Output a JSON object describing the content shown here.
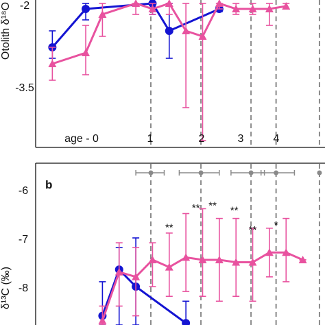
{
  "panel_a": {
    "ylabel": "Otolith δ¹⁸O",
    "yticks": [
      "-2",
      "-3.5"
    ],
    "age_labels": [
      "age - 0",
      "1",
      "2",
      "3",
      "4"
    ]
  },
  "panel_b": {
    "letter": "b",
    "ylabel": "δ¹³C (‰)",
    "yticks": [
      "-6",
      "-7",
      "-8"
    ],
    "significance": [
      "**",
      "**",
      "**",
      "**",
      "**",
      "*"
    ]
  },
  "colors": {
    "blue": "#1414d2",
    "pink": "#e8529f",
    "dash": "#8a8a8a"
  },
  "chart_data": [
    {
      "type": "line",
      "panel": "a",
      "ylabel": "Otolith δ¹⁸O",
      "ylim": [
        -4.5,
        -1.9
      ],
      "yticks": [
        -2,
        -3.5
      ],
      "x_range": [
        0,
        17
      ],
      "series": [
        {
          "color": "#1414d2",
          "marker": "circle",
          "x": [
            1,
            3,
            7,
            8,
            11
          ],
          "y": [
            -2.7,
            -2.0,
            -1.9,
            -2.4,
            -2.0
          ],
          "err_low": [
            -2.9,
            -2.2,
            -2.1,
            -2.9,
            -2.05
          ],
          "err_high": [
            -2.4,
            -1.9,
            -1.9,
            -1.9,
            -1.95
          ]
        },
        {
          "color": "#e8529f",
          "marker": "triangle",
          "x": [
            1,
            3,
            4,
            6,
            7,
            8,
            9,
            10,
            11,
            12,
            13,
            14,
            15
          ],
          "y": [
            -3.0,
            -2.8,
            -2.1,
            -1.9,
            -2.0,
            -1.9,
            -2.4,
            -2.5,
            -1.9,
            -2.0,
            -2.0,
            -2.0,
            -1.95
          ],
          "err_low": [
            -3.3,
            -3.2,
            -2.5,
            -2.1,
            -2.1,
            -2.1,
            -3.8,
            -4.4,
            -2.0,
            -2.1,
            -2.1,
            -2.3,
            -2.0
          ],
          "err_high": [
            -2.7,
            -2.3,
            -1.9,
            -1.9,
            -1.9,
            -1.9,
            -1.9,
            -1.9,
            -1.9,
            -1.9,
            -1.9,
            -1.9,
            -1.9
          ]
        }
      ],
      "dividers_x": [
        6.9,
        9.9,
        12.9,
        14.4,
        17
      ],
      "age_label_x": [
        4.2,
        8.3,
        11.4,
        13.6,
        15.6
      ]
    },
    {
      "type": "line",
      "panel": "b",
      "ylabel": "δ¹³C (‰)",
      "ylim": [
        -8.8,
        -5.3
      ],
      "yticks": [
        -6,
        -7,
        -8
      ],
      "x_range": [
        0,
        17
      ],
      "series": [
        {
          "color": "#1414d2",
          "marker": "circle",
          "x": [
            4,
            5,
            6,
            9
          ],
          "y": [
            -8.6,
            -7.65,
            -8.0,
            -8.75
          ],
          "err_low": [
            -8.8,
            -8.8,
            -8.8,
            -8.8
          ],
          "err_high": [
            -7.9,
            -7.2,
            -7.0,
            -8.3
          ]
        },
        {
          "color": "#e8529f",
          "marker": "triangle",
          "x": [
            4,
            5,
            6,
            7,
            8,
            9,
            10,
            11,
            12,
            13,
            14,
            15,
            16
          ],
          "y": [
            -8.7,
            -7.7,
            -7.8,
            -7.45,
            -7.6,
            -7.4,
            -7.45,
            -7.45,
            -7.5,
            -7.5,
            -7.3,
            -7.3,
            -7.45
          ],
          "err_low": [
            -8.8,
            -8.4,
            -8.6,
            -8.0,
            -8.2,
            -8.1,
            -8.2,
            -8.3,
            -8.2,
            -8.3,
            -7.8,
            -7.9,
            -7.45
          ],
          "err_high": [
            -8.4,
            -7.1,
            -7.2,
            -7.1,
            -6.9,
            -6.5,
            -6.4,
            -6.6,
            -6.6,
            -6.8,
            -6.8,
            -6.6,
            -7.45
          ]
        }
      ],
      "significance_x": [
        8,
        9.6,
        10.6,
        11.9,
        13,
        14.4
      ],
      "significance_y": [
        -6.85,
        -6.45,
        -6.4,
        -6.5,
        -6.9,
        -6.8
      ],
      "dividers_x": [
        6.9,
        9.9,
        12.9,
        14.4,
        17
      ],
      "top_intervals": [
        {
          "center": 6.9,
          "low": 6.0,
          "high": 7.7
        },
        {
          "center": 9.9,
          "low": 8.6,
          "high": 11.0
        },
        {
          "center": 12.9,
          "low": 11.7,
          "high": 13.7
        },
        {
          "center": 14.4,
          "low": 13.5,
          "high": 15.5
        },
        {
          "center": 17,
          "low": 17,
          "high": 17
        }
      ]
    }
  ]
}
